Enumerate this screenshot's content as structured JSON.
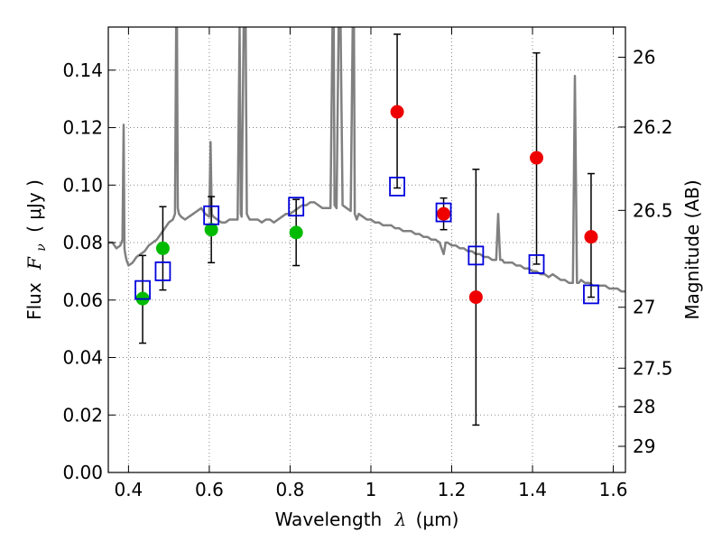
{
  "chart_data": {
    "type": "scatter",
    "xlabel": "Wavelength",
    "xlabel_symbol": "λ",
    "xlabel_unit": "(μm)",
    "ylabel": "Flux",
    "ylabel_symbol": "F",
    "ylabel_sub": "ν",
    "ylabel_unit": "( μJy )",
    "y2label": "Magnitude (AB)",
    "xlim": [
      0.35,
      1.63
    ],
    "ylim": [
      0.0,
      0.155
    ],
    "grid": true,
    "x_ticks": [
      0.4,
      0.6,
      0.8,
      1.0,
      1.2,
      1.4,
      1.6
    ],
    "x_tick_labels": [
      "0.4",
      "0.6",
      "0.8",
      "1",
      "1.2",
      "1.4",
      "1.6"
    ],
    "y_ticks": [
      0.0,
      0.02,
      0.04,
      0.06,
      0.08,
      0.1,
      0.12,
      0.14
    ],
    "y_tick_labels": [
      "0.00",
      "0.02",
      "0.04",
      "0.06",
      "0.08",
      "0.10",
      "0.12",
      "0.14"
    ],
    "y2_tick_labels": [
      "26",
      "26.2",
      "26.5",
      "27",
      "27.5",
      "28",
      "29"
    ],
    "y2_tick_flux": [
      0.1445,
      0.1202,
      0.0912,
      0.0575,
      0.0363,
      0.0229,
      0.0091
    ],
    "colors": {
      "model": "#808080",
      "green": "#00bb00",
      "red": "#ee0000",
      "blue": "#0000dd",
      "error": "#000000",
      "grid": "#888888"
    },
    "model_spectrum": {
      "x": [
        0.35,
        0.36,
        0.37,
        0.38,
        0.385,
        0.388,
        0.39,
        0.392,
        0.395,
        0.4,
        0.41,
        0.42,
        0.43,
        0.44,
        0.45,
        0.46,
        0.47,
        0.48,
        0.49,
        0.5,
        0.51,
        0.515,
        0.518,
        0.52,
        0.522,
        0.525,
        0.53,
        0.54,
        0.55,
        0.56,
        0.57,
        0.58,
        0.59,
        0.6,
        0.603,
        0.606,
        0.61,
        0.62,
        0.63,
        0.64,
        0.65,
        0.66,
        0.67,
        0.675,
        0.678,
        0.68,
        0.685,
        0.69,
        0.693,
        0.696,
        0.7,
        0.71,
        0.72,
        0.73,
        0.74,
        0.75,
        0.76,
        0.77,
        0.78,
        0.79,
        0.8,
        0.81,
        0.82,
        0.83,
        0.84,
        0.85,
        0.86,
        0.87,
        0.88,
        0.89,
        0.9,
        0.905,
        0.908,
        0.91,
        0.915,
        0.92,
        0.925,
        0.93,
        0.94,
        0.95,
        0.955,
        0.958,
        0.96,
        0.965,
        0.97,
        0.98,
        0.99,
        1.0,
        1.01,
        1.02,
        1.03,
        1.04,
        1.05,
        1.06,
        1.07,
        1.08,
        1.09,
        1.1,
        1.11,
        1.12,
        1.13,
        1.14,
        1.15,
        1.16,
        1.17,
        1.175,
        1.18,
        1.185,
        1.19,
        1.2,
        1.21,
        1.22,
        1.23,
        1.24,
        1.25,
        1.26,
        1.27,
        1.28,
        1.29,
        1.3,
        1.31,
        1.315,
        1.32,
        1.325,
        1.33,
        1.34,
        1.35,
        1.36,
        1.37,
        1.38,
        1.39,
        1.4,
        1.41,
        1.42,
        1.43,
        1.44,
        1.45,
        1.46,
        1.47,
        1.48,
        1.49,
        1.5,
        1.505,
        1.51,
        1.515,
        1.52,
        1.53,
        1.54,
        1.55,
        1.56,
        1.57,
        1.58,
        1.59,
        1.6,
        1.61,
        1.62,
        1.63
      ],
      "y": [
        0.08,
        0.08,
        0.078,
        0.079,
        0.081,
        0.121,
        0.078,
        0.076,
        0.074,
        0.072,
        0.073,
        0.075,
        0.076,
        0.077,
        0.079,
        0.08,
        0.081,
        0.083,
        0.085,
        0.087,
        0.088,
        0.09,
        0.155,
        0.155,
        0.092,
        0.09,
        0.089,
        0.088,
        0.089,
        0.09,
        0.091,
        0.092,
        0.09,
        0.089,
        0.115,
        0.09,
        0.089,
        0.088,
        0.087,
        0.087,
        0.088,
        0.088,
        0.088,
        0.155,
        0.09,
        0.089,
        0.155,
        0.155,
        0.09,
        0.089,
        0.088,
        0.088,
        0.088,
        0.087,
        0.088,
        0.088,
        0.087,
        0.088,
        0.089,
        0.09,
        0.09,
        0.091,
        0.092,
        0.093,
        0.093,
        0.094,
        0.094,
        0.093,
        0.092,
        0.092,
        0.092,
        0.155,
        0.155,
        0.093,
        0.092,
        0.155,
        0.155,
        0.093,
        0.092,
        0.091,
        0.155,
        0.155,
        0.09,
        0.088,
        0.09,
        0.089,
        0.088,
        0.088,
        0.087,
        0.087,
        0.086,
        0.086,
        0.086,
        0.085,
        0.085,
        0.084,
        0.084,
        0.084,
        0.083,
        0.083,
        0.082,
        0.082,
        0.081,
        0.081,
        0.08,
        0.078,
        0.076,
        0.08,
        0.08,
        0.079,
        0.079,
        0.078,
        0.078,
        0.077,
        0.077,
        0.076,
        0.076,
        0.075,
        0.075,
        0.074,
        0.074,
        0.09,
        0.074,
        0.074,
        0.073,
        0.073,
        0.073,
        0.072,
        0.072,
        0.071,
        0.071,
        0.07,
        0.07,
        0.069,
        0.069,
        0.068,
        0.069,
        0.068,
        0.067,
        0.067,
        0.066,
        0.066,
        0.138,
        0.066,
        0.066,
        0.067,
        0.066,
        0.066,
        0.065,
        0.065,
        0.065,
        0.065,
        0.064,
        0.064,
        0.064,
        0.063,
        0.063
      ]
    },
    "series": [
      {
        "marker": "filled-circle",
        "color": "green",
        "x": [
          0.435,
          0.485,
          0.605,
          0.815
        ],
        "y": [
          0.0605,
          0.078,
          0.0845,
          0.0835
        ],
        "err": [
          [
            0.045,
            0.0755
          ],
          [
            0.0635,
            0.0925
          ],
          [
            0.073,
            0.096
          ],
          [
            0.072,
            0.095
          ]
        ]
      },
      {
        "marker": "filled-circle",
        "color": "red",
        "x": [
          1.065,
          1.18,
          1.26,
          1.41,
          1.545
        ],
        "y": [
          0.1255,
          0.09,
          0.061,
          0.1095,
          0.082
        ],
        "err": [
          [
            0.099,
            0.1525
          ],
          [
            0.0845,
            0.0955
          ],
          [
            0.0165,
            0.1055
          ],
          [
            0.0725,
            0.146
          ],
          [
            0.061,
            0.104
          ]
        ]
      },
      {
        "marker": "open-square",
        "color": "blue",
        "x": [
          0.435,
          0.485,
          0.605,
          0.815,
          1.065,
          1.18,
          1.26,
          1.41,
          1.545
        ],
        "y": [
          0.0635,
          0.07,
          0.0895,
          0.0925,
          0.0995,
          0.0905,
          0.0755,
          0.0725,
          0.062
        ]
      }
    ]
  }
}
